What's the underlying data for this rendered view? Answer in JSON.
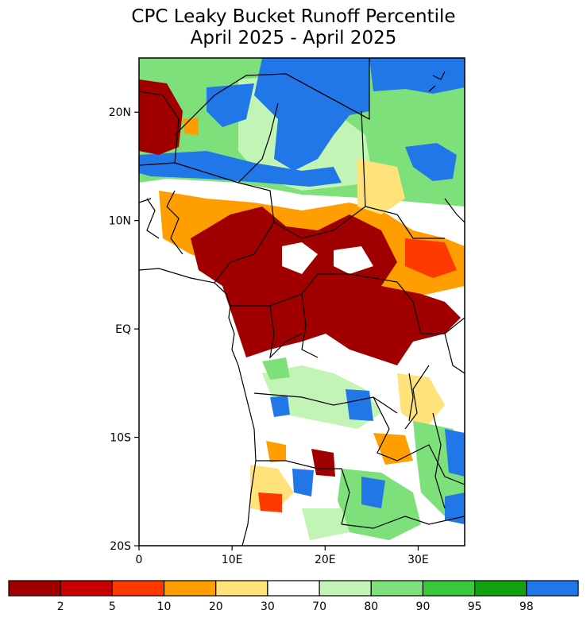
{
  "title": {
    "line1": "CPC Leaky Bucket Runoff Percentile",
    "line2": "April 2025 - April 2025"
  },
  "axes": {
    "lat_ticks": [
      {
        "value": 20,
        "label": "20N"
      },
      {
        "value": 10,
        "label": "10N"
      },
      {
        "value": 0,
        "label": "EQ"
      },
      {
        "value": -10,
        "label": "10S"
      },
      {
        "value": -20,
        "label": "20S"
      }
    ],
    "lon_ticks": [
      {
        "value": 0,
        "label": "0"
      },
      {
        "value": 10,
        "label": "10E"
      },
      {
        "value": 20,
        "label": "20E"
      },
      {
        "value": 30,
        "label": "30E"
      }
    ],
    "lon_range": [
      0,
      35
    ],
    "lat_range": [
      -20,
      25
    ]
  },
  "legend": {
    "colors": [
      "#a00000",
      "#c80000",
      "#ff3a00",
      "#ff9e00",
      "#ffe27a",
      "#ffffff",
      "#c2f5b5",
      "#7ee07a",
      "#3cc83c",
      "#10a010",
      "#2277e8"
    ],
    "labels": [
      "2",
      "5",
      "10",
      "20",
      "30",
      "70",
      "80",
      "90",
      "95",
      "98"
    ]
  }
}
